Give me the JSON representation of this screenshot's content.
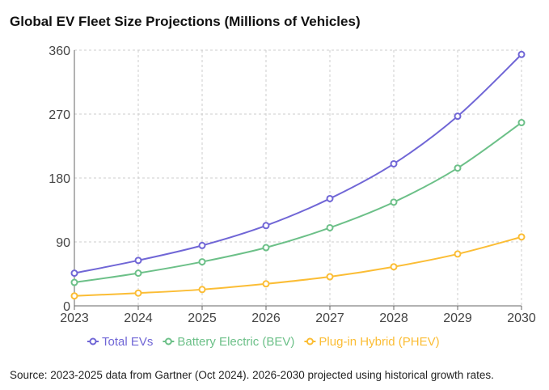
{
  "chart_data": {
    "type": "line",
    "title": "Global EV Fleet Size Projections (Millions of Vehicles)",
    "x": [
      "2023",
      "2024",
      "2025",
      "2026",
      "2027",
      "2028",
      "2029",
      "2030"
    ],
    "ylim": [
      0,
      360
    ],
    "yticks": [
      "0",
      "90",
      "180",
      "270",
      "360"
    ],
    "grid": true,
    "legend": "bottom",
    "series": [
      {
        "name": "Total EVs",
        "color": "#7066d6",
        "values": [
          46,
          64,
          85,
          113,
          151,
          200,
          267,
          354
        ]
      },
      {
        "name": "Battery Electric (BEV)",
        "color": "#6cc088",
        "values": [
          33,
          46,
          62,
          82,
          110,
          146,
          194,
          258
        ]
      },
      {
        "name": "Plug-in Hybrid (PHEV)",
        "color": "#fbbd35",
        "values": [
          14,
          18,
          23,
          31,
          41,
          55,
          73,
          97
        ]
      }
    ]
  },
  "footer": {
    "source": "Source: 2023-2025 data from Gartner (Oct 2024). 2026-2030 projected using historical growth rates."
  }
}
